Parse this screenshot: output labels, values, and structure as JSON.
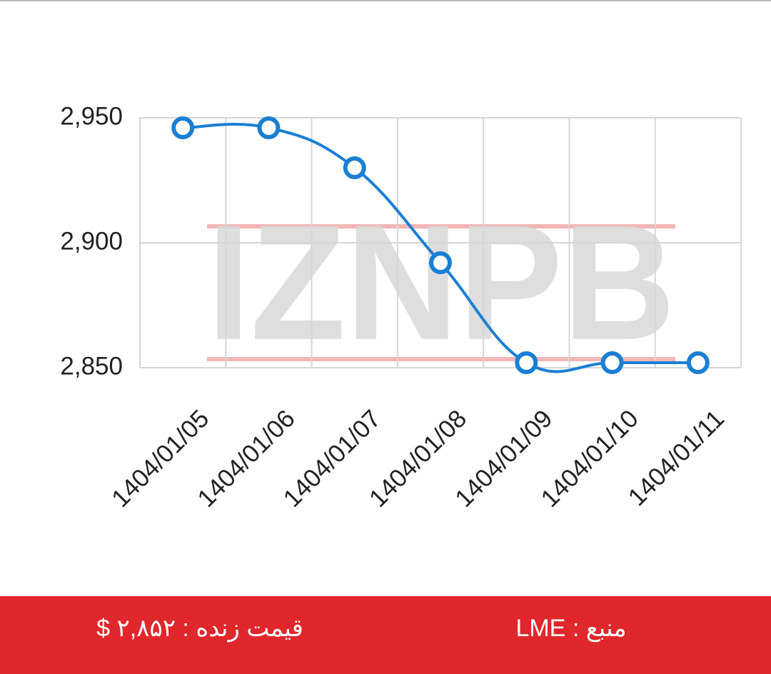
{
  "chart_data": {
    "type": "line",
    "categories": [
      "1404/01/05",
      "1404/01/06",
      "1404/01/07",
      "1404/01/08",
      "1404/01/09",
      "1404/01/10",
      "1404/01/11"
    ],
    "series": [
      {
        "color": "#1a7fd4",
        "values": [
          2946,
          2946,
          2930,
          2892,
          2852,
          2852,
          2852
        ]
      }
    ],
    "ylim": [
      2850,
      2950
    ],
    "yticks": [
      {
        "value": 2850,
        "label": "2,850"
      },
      {
        "value": 2900,
        "label": "2,900"
      },
      {
        "value": 2950,
        "label": "2,950"
      }
    ],
    "grid": true,
    "watermark": "IZNPB"
  },
  "footer": {
    "live_price": "قیمت زنده : ۲,۸۵۲ $",
    "source": "منبع : LME"
  }
}
